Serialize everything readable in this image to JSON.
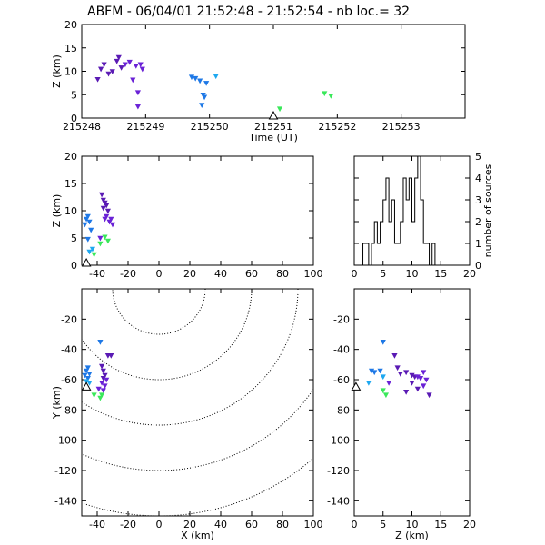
{
  "title": "ABFM - 06/04/01 21:52:48 - 21:52:54 - nb loc.=      32",
  "colors": {
    "c1": "#5a1ab4",
    "c2": "#6a22d6",
    "c3": "#1e78e6",
    "c4": "#1ea8f0",
    "c5": "#3ae85a"
  },
  "chart_data": [
    {
      "type": "scatter",
      "name": "time-height",
      "xlabel": "Time (UT)",
      "ylabel": "Z (km)",
      "xlim": [
        215248,
        215254
      ],
      "ylim": [
        0,
        20
      ],
      "xticks": [
        "215248",
        "215249",
        "215250",
        "215251",
        "215252",
        "215253"
      ],
      "yticks": [
        "0",
        "5",
        "10",
        "15",
        "20"
      ],
      "station_marker_x": 215251,
      "points": [
        {
          "x": 215248.25,
          "y": 8.3,
          "c": "c1"
        },
        {
          "x": 215248.3,
          "y": 10.5,
          "c": "c1"
        },
        {
          "x": 215248.35,
          "y": 11.5,
          "c": "c1"
        },
        {
          "x": 215248.42,
          "y": 9.5,
          "c": "c1"
        },
        {
          "x": 215248.48,
          "y": 10.0,
          "c": "c1"
        },
        {
          "x": 215248.55,
          "y": 12.2,
          "c": "c1"
        },
        {
          "x": 215248.58,
          "y": 13.0,
          "c": "c1"
        },
        {
          "x": 215248.62,
          "y": 10.8,
          "c": "c1"
        },
        {
          "x": 215248.68,
          "y": 11.5,
          "c": "c2"
        },
        {
          "x": 215248.75,
          "y": 12.0,
          "c": "c2"
        },
        {
          "x": 215248.8,
          "y": 8.2,
          "c": "c2"
        },
        {
          "x": 215248.85,
          "y": 11.2,
          "c": "c2"
        },
        {
          "x": 215248.88,
          "y": 5.5,
          "c": "c2"
        },
        {
          "x": 215248.92,
          "y": 11.5,
          "c": "c2"
        },
        {
          "x": 215248.95,
          "y": 10.5,
          "c": "c2"
        },
        {
          "x": 215248.88,
          "y": 2.5,
          "c": "c2"
        },
        {
          "x": 215249.72,
          "y": 8.8,
          "c": "c3"
        },
        {
          "x": 215249.78,
          "y": 8.5,
          "c": "c3"
        },
        {
          "x": 215249.85,
          "y": 8.0,
          "c": "c3"
        },
        {
          "x": 215249.9,
          "y": 5.0,
          "c": "c3"
        },
        {
          "x": 215249.92,
          "y": 4.5,
          "c": "c3"
        },
        {
          "x": 215249.95,
          "y": 7.5,
          "c": "c3"
        },
        {
          "x": 215249.88,
          "y": 2.8,
          "c": "c3"
        },
        {
          "x": 215250.1,
          "y": 9.0,
          "c": "c4"
        },
        {
          "x": 215251.1,
          "y": 2.0,
          "c": "c5"
        },
        {
          "x": 215251.8,
          "y": 5.3,
          "c": "c5"
        },
        {
          "x": 215251.9,
          "y": 4.8,
          "c": "c5"
        }
      ]
    },
    {
      "type": "scatter",
      "name": "x-z",
      "xlabel": "",
      "ylabel": "Z (km)",
      "xlim": [
        -50,
        100
      ],
      "ylim": [
        0,
        20
      ],
      "xticks": [
        "-40",
        "-20",
        "0",
        "20",
        "40",
        "60",
        "80",
        "100"
      ],
      "yticks": [
        "0",
        "5",
        "10",
        "15",
        "20"
      ],
      "station_marker_x": -47,
      "points": [
        {
          "x": -47,
          "y": 8.5,
          "c": "c3"
        },
        {
          "x": -46,
          "y": 9.0,
          "c": "c3"
        },
        {
          "x": -45,
          "y": 8.0,
          "c": "c3"
        },
        {
          "x": -48,
          "y": 7.5,
          "c": "c3"
        },
        {
          "x": -44,
          "y": 6.5,
          "c": "c3"
        },
        {
          "x": -46,
          "y": 4.8,
          "c": "c3"
        },
        {
          "x": -45,
          "y": 2.5,
          "c": "c4"
        },
        {
          "x": -43,
          "y": 3.0,
          "c": "c4"
        },
        {
          "x": -37,
          "y": 13.0,
          "c": "c1"
        },
        {
          "x": -36,
          "y": 12.0,
          "c": "c1"
        },
        {
          "x": -35,
          "y": 11.5,
          "c": "c1"
        },
        {
          "x": -34,
          "y": 11.0,
          "c": "c1"
        },
        {
          "x": -36,
          "y": 10.5,
          "c": "c1"
        },
        {
          "x": -33,
          "y": 10.0,
          "c": "c1"
        },
        {
          "x": -34,
          "y": 9.0,
          "c": "c2"
        },
        {
          "x": -32,
          "y": 8.0,
          "c": "c2"
        },
        {
          "x": -31,
          "y": 8.5,
          "c": "c2"
        },
        {
          "x": -30,
          "y": 7.5,
          "c": "c2"
        },
        {
          "x": -35,
          "y": 8.5,
          "c": "c2"
        },
        {
          "x": -38,
          "y": 5.0,
          "c": "c2"
        },
        {
          "x": -35,
          "y": 5.2,
          "c": "c5"
        },
        {
          "x": -33,
          "y": 4.5,
          "c": "c5"
        },
        {
          "x": -38,
          "y": 4.0,
          "c": "c5"
        },
        {
          "x": -42,
          "y": 2.0,
          "c": "c5"
        }
      ]
    },
    {
      "type": "histogram",
      "name": "z-histogram",
      "xlabel": "",
      "ylabel": "number of sources",
      "xlim": [
        0,
        20
      ],
      "ylim": [
        0,
        5
      ],
      "xticks": [
        "0",
        "5",
        "10",
        "15",
        "20"
      ],
      "yticks": [
        "0",
        "1",
        "2",
        "3",
        "4",
        "5"
      ],
      "bin_width": 0.5,
      "bins_start": 1.5,
      "counts": [
        1,
        1,
        0,
        1,
        2,
        1,
        2,
        3,
        4,
        2,
        3,
        1,
        1,
        2,
        4,
        3,
        4,
        2,
        4,
        5,
        3,
        1,
        1,
        0,
        1
      ]
    },
    {
      "type": "scatter",
      "name": "x-y-plan",
      "xlabel": "X (km)",
      "ylabel": "Y (km)",
      "xlim": [
        -50,
        100
      ],
      "ylim": [
        -150,
        0
      ],
      "xticks": [
        "-40",
        "-20",
        "0",
        "20",
        "40",
        "60",
        "80",
        "100"
      ],
      "yticks": [
        "-140",
        "-120",
        "-100",
        "-80",
        "-60",
        "-40",
        "-20"
      ],
      "range_rings_km": [
        30,
        60,
        90,
        120,
        150,
        180
      ],
      "ring_center": [
        0,
        0
      ],
      "station_marker": [
        -47,
        -65
      ],
      "points": [
        {
          "x": -38,
          "y": -35,
          "c": "c3"
        },
        {
          "x": -46,
          "y": -52,
          "c": "c3"
        },
        {
          "x": -47,
          "y": -54,
          "c": "c3"
        },
        {
          "x": -45,
          "y": -56,
          "c": "c3"
        },
        {
          "x": -48,
          "y": -57,
          "c": "c3"
        },
        {
          "x": -46,
          "y": -59,
          "c": "c3"
        },
        {
          "x": -47,
          "y": -61,
          "c": "c4"
        },
        {
          "x": -45,
          "y": -62,
          "c": "c4"
        },
        {
          "x": -33,
          "y": -44,
          "c": "c1"
        },
        {
          "x": -31,
          "y": -44,
          "c": "c1"
        },
        {
          "x": -37,
          "y": -51,
          "c": "c1"
        },
        {
          "x": -36,
          "y": -54,
          "c": "c1"
        },
        {
          "x": -35,
          "y": -57,
          "c": "c1"
        },
        {
          "x": -36,
          "y": -59,
          "c": "c1"
        },
        {
          "x": -34,
          "y": -60,
          "c": "c2"
        },
        {
          "x": -37,
          "y": -62,
          "c": "c2"
        },
        {
          "x": -35,
          "y": -64,
          "c": "c2"
        },
        {
          "x": -39,
          "y": -66,
          "c": "c2"
        },
        {
          "x": -36,
          "y": -67,
          "c": "c2"
        },
        {
          "x": -42,
          "y": -70,
          "c": "c5"
        },
        {
          "x": -37,
          "y": -70,
          "c": "c5"
        },
        {
          "x": -38,
          "y": -72,
          "c": "c5"
        }
      ]
    },
    {
      "type": "scatter",
      "name": "z-y",
      "xlabel": "Z (km)",
      "ylabel": "",
      "xlim": [
        0,
        20
      ],
      "ylim": [
        -150,
        0
      ],
      "xticks": [
        "0",
        "5",
        "10",
        "15",
        "20"
      ],
      "yticks": [
        "-140",
        "-120",
        "-100",
        "-80",
        "-60",
        "-40",
        "-20"
      ],
      "station_marker": [
        0.3,
        -65
      ],
      "points": [
        {
          "x": 5.0,
          "y": -35,
          "c": "c3"
        },
        {
          "x": 3.0,
          "y": -54,
          "c": "c3"
        },
        {
          "x": 3.5,
          "y": -55,
          "c": "c3"
        },
        {
          "x": 4.5,
          "y": -54,
          "c": "c3"
        },
        {
          "x": 2.5,
          "y": -62,
          "c": "c4"
        },
        {
          "x": 5.0,
          "y": -58,
          "c": "c4"
        },
        {
          "x": 7.0,
          "y": -44,
          "c": "c1"
        },
        {
          "x": 7.5,
          "y": -52,
          "c": "c1"
        },
        {
          "x": 8.0,
          "y": -56,
          "c": "c1"
        },
        {
          "x": 9.0,
          "y": -55,
          "c": "c1"
        },
        {
          "x": 10.0,
          "y": -57,
          "c": "c1"
        },
        {
          "x": 10.5,
          "y": -58,
          "c": "c1"
        },
        {
          "x": 11.0,
          "y": -58,
          "c": "c2"
        },
        {
          "x": 11.5,
          "y": -59,
          "c": "c2"
        },
        {
          "x": 12.0,
          "y": -55,
          "c": "c2"
        },
        {
          "x": 12.5,
          "y": -60,
          "c": "c2"
        },
        {
          "x": 12.0,
          "y": -64,
          "c": "c2"
        },
        {
          "x": 13.0,
          "y": -70,
          "c": "c1"
        },
        {
          "x": 11.0,
          "y": -66,
          "c": "c1"
        },
        {
          "x": 10.0,
          "y": -62,
          "c": "c1"
        },
        {
          "x": 9.0,
          "y": -68,
          "c": "c1"
        },
        {
          "x": 6.0,
          "y": -62,
          "c": "c2"
        },
        {
          "x": 5.0,
          "y": -67,
          "c": "c5"
        },
        {
          "x": 5.5,
          "y": -70,
          "c": "c5"
        }
      ]
    }
  ]
}
